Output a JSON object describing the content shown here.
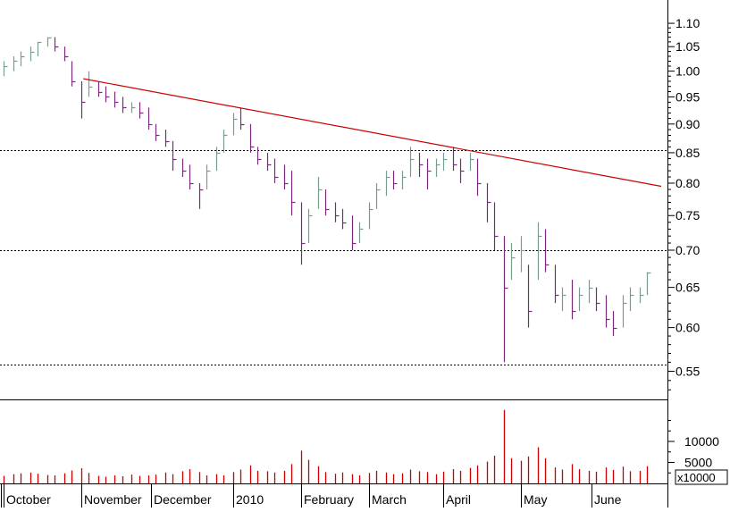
{
  "chart_data": [
    {
      "type": "ohlc",
      "title": "",
      "xlabel": "",
      "ylabel": "",
      "y_scale": "log",
      "ylim": [
        0.52,
        1.14
      ],
      "y_ticks": [
        "1.10",
        "1.05",
        "1.00",
        "0.95",
        "0.90",
        "0.85",
        "0.80",
        "0.75",
        "0.70",
        "0.65",
        "0.60",
        "0.55"
      ],
      "x_ticks": [
        "October",
        "November",
        "December",
        "2010",
        "February",
        "March",
        "April",
        "May",
        "June"
      ],
      "x_ticks_dates": [
        "2009-10-01",
        "2009-11-02",
        "2009-12-01",
        "2010-01-04",
        "2010-02-01",
        "2010-03-01",
        "2010-04-01",
        "2010-05-03",
        "2010-06-01"
      ],
      "x_range": [
        "2009-10-01",
        "2010-06-30"
      ],
      "up_color": "#7a9a94",
      "down_color": "#7a2a7a",
      "price_series": [
        [
          "2009-10-01",
          1.02,
          0.99,
          1.01
        ],
        [
          "2009-10-05",
          1.03,
          1.0,
          1.02
        ],
        [
          "2009-10-08",
          1.04,
          1.01,
          1.03
        ],
        [
          "2009-10-12",
          1.05,
          1.02,
          1.04
        ],
        [
          "2009-10-15",
          1.06,
          1.03,
          1.06
        ],
        [
          "2009-10-19",
          1.07,
          1.05,
          1.07
        ],
        [
          "2009-10-22",
          1.07,
          1.04,
          1.05
        ],
        [
          "2009-10-26",
          1.05,
          1.02,
          1.03
        ],
        [
          "2009-10-29",
          1.02,
          0.97,
          0.98
        ],
        [
          "2009-11-02",
          0.98,
          0.91,
          0.94
        ],
        [
          "2009-11-05",
          1.0,
          0.95,
          0.97
        ],
        [
          "2009-11-09",
          0.98,
          0.95,
          0.96
        ],
        [
          "2009-11-12",
          0.97,
          0.94,
          0.95
        ],
        [
          "2009-11-16",
          0.96,
          0.93,
          0.94
        ],
        [
          "2009-11-19",
          0.95,
          0.92,
          0.93
        ],
        [
          "2009-11-23",
          0.94,
          0.92,
          0.93
        ],
        [
          "2009-11-26",
          0.94,
          0.91,
          0.92
        ],
        [
          "2009-11-30",
          0.93,
          0.89,
          0.9
        ],
        [
          "2009-12-03",
          0.9,
          0.87,
          0.88
        ],
        [
          "2009-12-07",
          0.89,
          0.86,
          0.87
        ],
        [
          "2009-12-10",
          0.87,
          0.82,
          0.84
        ],
        [
          "2009-12-14",
          0.84,
          0.81,
          0.82
        ],
        [
          "2009-12-17",
          0.83,
          0.79,
          0.8
        ],
        [
          "2009-12-21",
          0.8,
          0.76,
          0.79
        ],
        [
          "2009-12-24",
          0.83,
          0.79,
          0.82
        ],
        [
          "2009-12-28",
          0.86,
          0.82,
          0.85
        ],
        [
          "2009-12-31",
          0.89,
          0.85,
          0.88
        ],
        [
          "2010-01-04",
          0.92,
          0.88,
          0.91
        ],
        [
          "2010-01-07",
          0.93,
          0.89,
          0.9
        ],
        [
          "2010-01-11",
          0.9,
          0.85,
          0.86
        ],
        [
          "2010-01-14",
          0.86,
          0.83,
          0.84
        ],
        [
          "2010-01-18",
          0.85,
          0.82,
          0.83
        ],
        [
          "2010-01-21",
          0.84,
          0.8,
          0.81
        ],
        [
          "2010-01-25",
          0.83,
          0.79,
          0.8
        ],
        [
          "2010-01-28",
          0.82,
          0.75,
          0.77
        ],
        [
          "2010-02-01",
          0.77,
          0.68,
          0.71
        ],
        [
          "2010-02-04",
          0.76,
          0.71,
          0.75
        ],
        [
          "2010-02-08",
          0.81,
          0.76,
          0.79
        ],
        [
          "2010-02-11",
          0.79,
          0.75,
          0.76
        ],
        [
          "2010-02-15",
          0.77,
          0.74,
          0.75
        ],
        [
          "2010-02-18",
          0.76,
          0.73,
          0.74
        ],
        [
          "2010-02-22",
          0.75,
          0.7,
          0.71
        ],
        [
          "2010-02-25",
          0.74,
          0.71,
          0.73
        ],
        [
          "2010-03-01",
          0.77,
          0.73,
          0.76
        ],
        [
          "2010-03-04",
          0.8,
          0.76,
          0.79
        ],
        [
          "2010-03-08",
          0.82,
          0.78,
          0.81
        ],
        [
          "2010-03-11",
          0.82,
          0.79,
          0.8
        ],
        [
          "2010-03-15",
          0.82,
          0.79,
          0.81
        ],
        [
          "2010-03-18",
          0.86,
          0.81,
          0.84
        ],
        [
          "2010-03-22",
          0.85,
          0.81,
          0.83
        ],
        [
          "2010-03-25",
          0.84,
          0.79,
          0.82
        ],
        [
          "2010-03-29",
          0.84,
          0.81,
          0.83
        ],
        [
          "2010-04-01",
          0.85,
          0.82,
          0.84
        ],
        [
          "2010-04-05",
          0.86,
          0.82,
          0.83
        ],
        [
          "2010-04-08",
          0.84,
          0.8,
          0.82
        ],
        [
          "2010-04-12",
          0.85,
          0.82,
          0.84
        ],
        [
          "2010-04-15",
          0.84,
          0.78,
          0.8
        ],
        [
          "2010-04-19",
          0.8,
          0.74,
          0.77
        ],
        [
          "2010-04-22",
          0.77,
          0.7,
          0.72
        ],
        [
          "2010-04-26",
          0.72,
          0.56,
          0.65
        ],
        [
          "2010-04-29",
          0.71,
          0.66,
          0.69
        ],
        [
          "2010-05-03",
          0.72,
          0.67,
          0.7
        ],
        [
          "2010-05-06",
          0.68,
          0.6,
          0.62
        ],
        [
          "2010-05-10",
          0.74,
          0.66,
          0.72
        ],
        [
          "2010-05-13",
          0.73,
          0.67,
          0.68
        ],
        [
          "2010-05-17",
          0.68,
          0.63,
          0.64
        ],
        [
          "2010-05-20",
          0.65,
          0.62,
          0.64
        ],
        [
          "2010-05-24",
          0.66,
          0.61,
          0.62
        ],
        [
          "2010-05-27",
          0.65,
          0.62,
          0.64
        ],
        [
          "2010-05-31",
          0.66,
          0.63,
          0.65
        ],
        [
          "2010-06-03",
          0.65,
          0.62,
          0.63
        ],
        [
          "2010-06-07",
          0.64,
          0.6,
          0.61
        ],
        [
          "2010-06-10",
          0.62,
          0.59,
          0.6
        ],
        [
          "2010-06-14",
          0.64,
          0.6,
          0.63
        ],
        [
          "2010-06-17",
          0.65,
          0.62,
          0.64
        ],
        [
          "2010-06-21",
          0.65,
          0.63,
          0.64
        ],
        [
          "2010-06-24",
          0.67,
          0.64,
          0.67
        ]
      ],
      "resistance_line": {
        "color": "#cc0000",
        "points": [
          [
            "2009-11-03",
            0.985
          ],
          [
            "2010-06-30",
            0.795
          ]
        ]
      },
      "horizontal_levels": [
        0.855,
        0.7,
        0.557
      ],
      "grid": false
    },
    {
      "type": "bar",
      "y_ticks": [
        "10000",
        "5000"
      ],
      "unit_label": "x10000",
      "ylim": [
        0,
        20000
      ],
      "bar_color": "#cc0000",
      "volume_series": [
        [
          "2009-10-01",
          1800
        ],
        [
          "2009-10-05",
          2200
        ],
        [
          "2009-10-08",
          2400
        ],
        [
          "2009-10-12",
          2600
        ],
        [
          "2009-10-15",
          2300
        ],
        [
          "2009-10-19",
          2000
        ],
        [
          "2009-10-22",
          1900
        ],
        [
          "2009-10-26",
          2400
        ],
        [
          "2009-10-29",
          3100
        ],
        [
          "2009-11-02",
          3600
        ],
        [
          "2009-11-05",
          2500
        ],
        [
          "2009-11-09",
          1800
        ],
        [
          "2009-11-12",
          1600
        ],
        [
          "2009-11-16",
          1900
        ],
        [
          "2009-11-19",
          1700
        ],
        [
          "2009-11-23",
          2100
        ],
        [
          "2009-11-26",
          1800
        ],
        [
          "2009-11-30",
          1900
        ],
        [
          "2009-12-03",
          2100
        ],
        [
          "2009-12-07",
          2600
        ],
        [
          "2009-12-10",
          2200
        ],
        [
          "2009-12-14",
          2900
        ],
        [
          "2009-12-17",
          3400
        ],
        [
          "2009-12-21",
          2700
        ],
        [
          "2009-12-24",
          1900
        ],
        [
          "2009-12-28",
          2200
        ],
        [
          "2009-12-31",
          1900
        ],
        [
          "2010-01-04",
          2700
        ],
        [
          "2010-01-07",
          3300
        ],
        [
          "2010-01-11",
          4300
        ],
        [
          "2010-01-14",
          3000
        ],
        [
          "2010-01-18",
          2900
        ],
        [
          "2010-01-21",
          2600
        ],
        [
          "2010-01-25",
          3000
        ],
        [
          "2010-01-28",
          4600
        ],
        [
          "2010-02-01",
          7800
        ],
        [
          "2010-02-04",
          5600
        ],
        [
          "2010-02-08",
          4100
        ],
        [
          "2010-02-11",
          2700
        ],
        [
          "2010-02-15",
          2300
        ],
        [
          "2010-02-18",
          2600
        ],
        [
          "2010-02-22",
          2200
        ],
        [
          "2010-02-25",
          1900
        ],
        [
          "2010-03-01",
          2500
        ],
        [
          "2010-03-04",
          3000
        ],
        [
          "2010-03-08",
          2600
        ],
        [
          "2010-03-11",
          2200
        ],
        [
          "2010-03-15",
          2400
        ],
        [
          "2010-03-18",
          3300
        ],
        [
          "2010-03-22",
          2900
        ],
        [
          "2010-03-25",
          2700
        ],
        [
          "2010-03-29",
          2200
        ],
        [
          "2010-04-01",
          2800
        ],
        [
          "2010-04-05",
          3400
        ],
        [
          "2010-04-08",
          3000
        ],
        [
          "2010-04-12",
          3700
        ],
        [
          "2010-04-15",
          4300
        ],
        [
          "2010-04-19",
          5200
        ],
        [
          "2010-04-22",
          6600
        ],
        [
          "2010-04-26",
          17500
        ],
        [
          "2010-04-29",
          6000
        ],
        [
          "2010-05-03",
          5400
        ],
        [
          "2010-05-06",
          6400
        ],
        [
          "2010-05-10",
          8600
        ],
        [
          "2010-05-13",
          6000
        ],
        [
          "2010-05-17",
          3800
        ],
        [
          "2010-05-20",
          3300
        ],
        [
          "2010-05-24",
          4600
        ],
        [
          "2010-05-27",
          3400
        ],
        [
          "2010-05-31",
          3000
        ],
        [
          "2010-06-03",
          2800
        ],
        [
          "2010-06-07",
          3800
        ],
        [
          "2010-06-10",
          3200
        ],
        [
          "2010-06-14",
          4000
        ],
        [
          "2010-06-17",
          2900
        ],
        [
          "2010-06-21",
          3000
        ],
        [
          "2010-06-24",
          4100
        ]
      ]
    }
  ]
}
